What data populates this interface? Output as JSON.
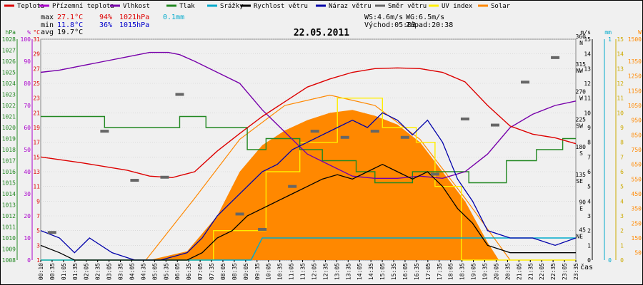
{
  "chart_data": {
    "type": "line",
    "title": "22.05.2011",
    "xlabel": "čas",
    "x_range_minutes": [
      10,
      1435
    ],
    "legend": [
      {
        "name": "Teplota",
        "color": "#dd0000"
      },
      {
        "name": "Přízemní teplota",
        "color": "#aa00cc"
      },
      {
        "name": "Vlhkost",
        "color": "#7700aa"
      },
      {
        "name": "Tlak",
        "color": "#228822"
      },
      {
        "name": "Srážky",
        "color": "#00aacc"
      },
      {
        "name": "Rychlost větru",
        "color": "#000000"
      },
      {
        "name": "Náraz větru",
        "color": "#0000aa"
      },
      {
        "name": "Směr větru",
        "color": "#666666"
      },
      {
        "name": "UV index",
        "color": "#ffee00"
      },
      {
        "name": "Solar",
        "color": "#ff8800"
      }
    ],
    "stats": {
      "max_label": "max",
      "max_temp": "27.1°C",
      "max_hum": "94%",
      "max_press": "1021hPa",
      "rain": "0.1mm",
      "min_label": "min",
      "min_temp": "11.8°C",
      "min_hum": "36%",
      "min_press": "1015hPa",
      "avg_label": "avg",
      "avg_temp": "19.7°C",
      "ws": "WS:4.6m/s",
      "wg": "WG:6.5m/s",
      "sunrise": "Východ:05:03",
      "sunset": "Západ:20:38"
    },
    "axes": {
      "hpa": {
        "unit": "hPa",
        "ticks": [
          1028,
          1027,
          1026,
          1025,
          1024,
          1023,
          1022,
          1021,
          1020,
          1019,
          1018,
          1017,
          1016,
          1015,
          1014,
          1013,
          1012,
          1011,
          1010,
          1009,
          1008
        ],
        "range": [
          1008,
          1028
        ]
      },
      "pct": {
        "unit": "%",
        "ticks": [
          100,
          90,
          80,
          70,
          60,
          50,
          40,
          30,
          20,
          10,
          0
        ],
        "range": [
          0,
          100
        ]
      },
      "temp": {
        "unit": "°C",
        "ticks": [
          31,
          29,
          27,
          25,
          23,
          21,
          19,
          17,
          15,
          13,
          11,
          9,
          7,
          5,
          3,
          1
        ],
        "range": [
          1,
          31
        ]
      },
      "dir": {
        "labels": [
          "360 N",
          "315 NW",
          "270 W",
          "225 SW",
          "180 S",
          "135 SE",
          "90 E",
          "45 NE"
        ],
        "range": [
          0,
          360
        ]
      },
      "ms": {
        "unit": "m/s",
        "ticks": [
          15,
          14,
          13,
          12,
          11,
          10,
          9,
          8,
          7,
          6,
          5,
          4,
          3,
          2,
          1,
          0
        ],
        "range": [
          0,
          15
        ]
      },
      "mm": {
        "unit": "mm",
        "ticks": [
          1,
          0
        ],
        "range": [
          0,
          1
        ]
      },
      "uv": {
        "ticks": [
          15,
          14,
          13,
          12,
          11,
          10,
          9,
          8,
          7,
          6,
          5,
          4,
          3,
          2,
          1,
          0
        ],
        "range": [
          0,
          15
        ]
      },
      "wm2": {
        "unit": "W",
        "ticks": [
          1500,
          1350,
          1250,
          1150,
          1050,
          950,
          850,
          750,
          650,
          550,
          450,
          350,
          250,
          150,
          50
        ],
        "range": [
          0,
          1500
        ]
      }
    },
    "x_tick_labels": [
      "00:10",
      "00:35",
      "01:05",
      "01:35",
      "02:05",
      "02:35",
      "03:05",
      "03:35",
      "04:05",
      "04:35",
      "05:05",
      "05:35",
      "06:05",
      "06:35",
      "07:05",
      "07:35",
      "08:05",
      "08:35",
      "09:05",
      "09:35",
      "10:05",
      "10:35",
      "11:05",
      "11:35",
      "12:05",
      "12:35",
      "13:05",
      "13:35",
      "14:05",
      "14:35",
      "15:05",
      "15:35",
      "16:05",
      "16:35",
      "17:05",
      "17:35",
      "18:05",
      "18:35",
      "19:05",
      "19:35",
      "20:05",
      "20:35",
      "21:05",
      "21:35",
      "22:05",
      "22:35",
      "23:05",
      "23:35"
    ],
    "series": [
      {
        "name": "Teplota",
        "axis": "temp",
        "x": [
          10,
          120,
          240,
          300,
          360,
          420,
          480,
          540,
          600,
          660,
          720,
          780,
          840,
          900,
          960,
          1020,
          1080,
          1140,
          1200,
          1260,
          1320,
          1380,
          1435
        ],
        "values": [
          15.0,
          14.2,
          13.2,
          12.4,
          12.2,
          13.0,
          15.8,
          18.2,
          20.5,
          22.5,
          24.5,
          25.6,
          26.5,
          27.0,
          27.1,
          27.0,
          26.5,
          25.2,
          22.0,
          19.2,
          18.1,
          17.6,
          16.8
        ]
      },
      {
        "name": "Vlhkost",
        "axis": "pct",
        "x": [
          10,
          60,
          120,
          180,
          240,
          300,
          350,
          380,
          420,
          480,
          540,
          600,
          660,
          720,
          780,
          840,
          900,
          960,
          1020,
          1080,
          1140,
          1200,
          1260,
          1320,
          1380,
          1435
        ],
        "values": [
          85,
          86,
          88,
          90,
          92,
          94,
          94,
          93,
          90,
          85,
          80,
          68,
          58,
          48,
          43,
          38,
          37,
          37,
          38,
          37,
          40,
          48,
          60,
          66,
          70,
          72
        ]
      },
      {
        "name": "Tlak",
        "axis": "hpa",
        "x": [
          10,
          180,
          180,
          380,
          380,
          450,
          450,
          560,
          560,
          610,
          610,
          700,
          700,
          760,
          760,
          850,
          850,
          900,
          900,
          1000,
          1000,
          1150,
          1150,
          1250,
          1250,
          1330,
          1330,
          1400,
          1400,
          1435
        ],
        "values": [
          1021,
          1021,
          1020,
          1020,
          1021,
          1021,
          1020,
          1020,
          1018,
          1018,
          1019,
          1019,
          1018,
          1018,
          1017,
          1017,
          1016,
          1016,
          1015,
          1015,
          1016,
          1016,
          1015,
          1015,
          1017,
          1017,
          1018,
          1018,
          1019,
          1019
        ]
      },
      {
        "name": "Srážky",
        "axis": "mm",
        "x": [
          10,
          570,
          600,
          1435
        ],
        "values": [
          0,
          0,
          0.1,
          0.1
        ]
      },
      {
        "name": "Rychlost větru",
        "axis": "ms",
        "x": [
          10,
          60,
          100,
          140,
          200,
          260,
          330,
          400,
          440,
          480,
          520,
          560,
          600,
          640,
          680,
          720,
          760,
          800,
          840,
          880,
          920,
          960,
          1000,
          1040,
          1080,
          1120,
          1160,
          1200,
          1260,
          1320,
          1380,
          1435
        ],
        "values": [
          1.0,
          0.5,
          0.0,
          0.0,
          0.0,
          0.0,
          0.0,
          0.0,
          0.5,
          1.5,
          2.0,
          3.0,
          3.5,
          4.0,
          4.5,
          5.0,
          5.5,
          5.8,
          5.5,
          6.0,
          6.5,
          6.0,
          5.5,
          6.0,
          5.0,
          3.5,
          2.5,
          1.0,
          0.5,
          0.5,
          0.5,
          0.5
        ]
      },
      {
        "name": "Náraz větru",
        "axis": "ms",
        "x": [
          10,
          60,
          100,
          140,
          200,
          260,
          330,
          400,
          440,
          480,
          520,
          560,
          600,
          640,
          680,
          720,
          760,
          800,
          840,
          880,
          920,
          960,
          1000,
          1040,
          1080,
          1120,
          1160,
          1200,
          1260,
          1320,
          1380,
          1435
        ],
        "values": [
          2.0,
          1.5,
          0.5,
          1.5,
          0.5,
          0.0,
          0.0,
          0.5,
          1.5,
          3.0,
          4.0,
          5.0,
          6.0,
          6.5,
          7.5,
          8.0,
          8.5,
          9.0,
          9.5,
          9.0,
          10.0,
          9.5,
          8.5,
          9.5,
          8.0,
          5.5,
          4.0,
          2.0,
          1.5,
          1.5,
          1.0,
          1.5
        ]
      },
      {
        "name": "Směr větru",
        "axis": "dir",
        "x": [
          40,
          180,
          260,
          340,
          380,
          540,
          600,
          680,
          740,
          820,
          900,
          980,
          1060,
          1140,
          1220,
          1300,
          1380
        ],
        "values": [
          45,
          210,
          130,
          135,
          270,
          75,
          50,
          120,
          210,
          200,
          210,
          200,
          140,
          230,
          220,
          290,
          330
        ]
      },
      {
        "name": "UV index",
        "axis": "uv",
        "x": [
          10,
          470,
          470,
          610,
          610,
          700,
          700,
          800,
          800,
          920,
          920,
          1010,
          1010,
          1060,
          1060,
          1130,
          1130,
          1435
        ],
        "values": [
          0,
          0,
          2,
          2,
          6,
          6,
          8,
          8,
          11,
          11,
          9,
          9,
          8,
          8,
          5,
          5,
          0,
          0
        ]
      },
      {
        "name": "Solar",
        "axis": "wm2",
        "x": [
          300,
          400,
          480,
          540,
          600,
          660,
          720,
          780,
          840,
          900,
          960,
          1020,
          1080,
          1140,
          1200,
          1230
        ],
        "values": [
          0,
          60,
          300,
          600,
          780,
          880,
          950,
          1000,
          1020,
          980,
          920,
          800,
          600,
          400,
          120,
          0
        ]
      },
      {
        "name": "Solar max",
        "axis": "wm2",
        "x": [
          290,
          420,
          540,
          660,
          780,
          900,
          1020,
          1140,
          1260
        ],
        "values": [
          0,
          420,
          820,
          1050,
          1120,
          1050,
          820,
          420,
          0
        ]
      }
    ]
  }
}
